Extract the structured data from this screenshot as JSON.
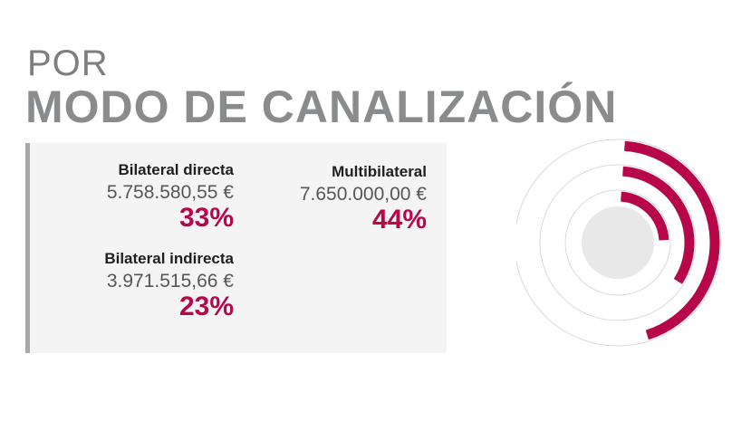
{
  "header": {
    "line1": "POR",
    "line2": "MODO DE CANALIZACIÓN"
  },
  "colors": {
    "accent": "#b7064a",
    "title_gray": "#8a8b8d",
    "panel_bg": "#f4f4f5",
    "ring_gray": "#d9d9da",
    "center_gray": "#e8e8e9"
  },
  "chart_data": {
    "type": "radial-bar",
    "series": [
      {
        "name": "Multibilateral",
        "amount": "7.650.000,00 €",
        "percent_label": "44%",
        "value": 44
      },
      {
        "name": "Bilateral directa",
        "amount": "5.758.580,55 €",
        "percent_label": "33%",
        "value": 33
      },
      {
        "name": "Bilateral indirecta",
        "amount": "3.971.515,66 €",
        "percent_label": "23%",
        "value": 23
      }
    ]
  }
}
